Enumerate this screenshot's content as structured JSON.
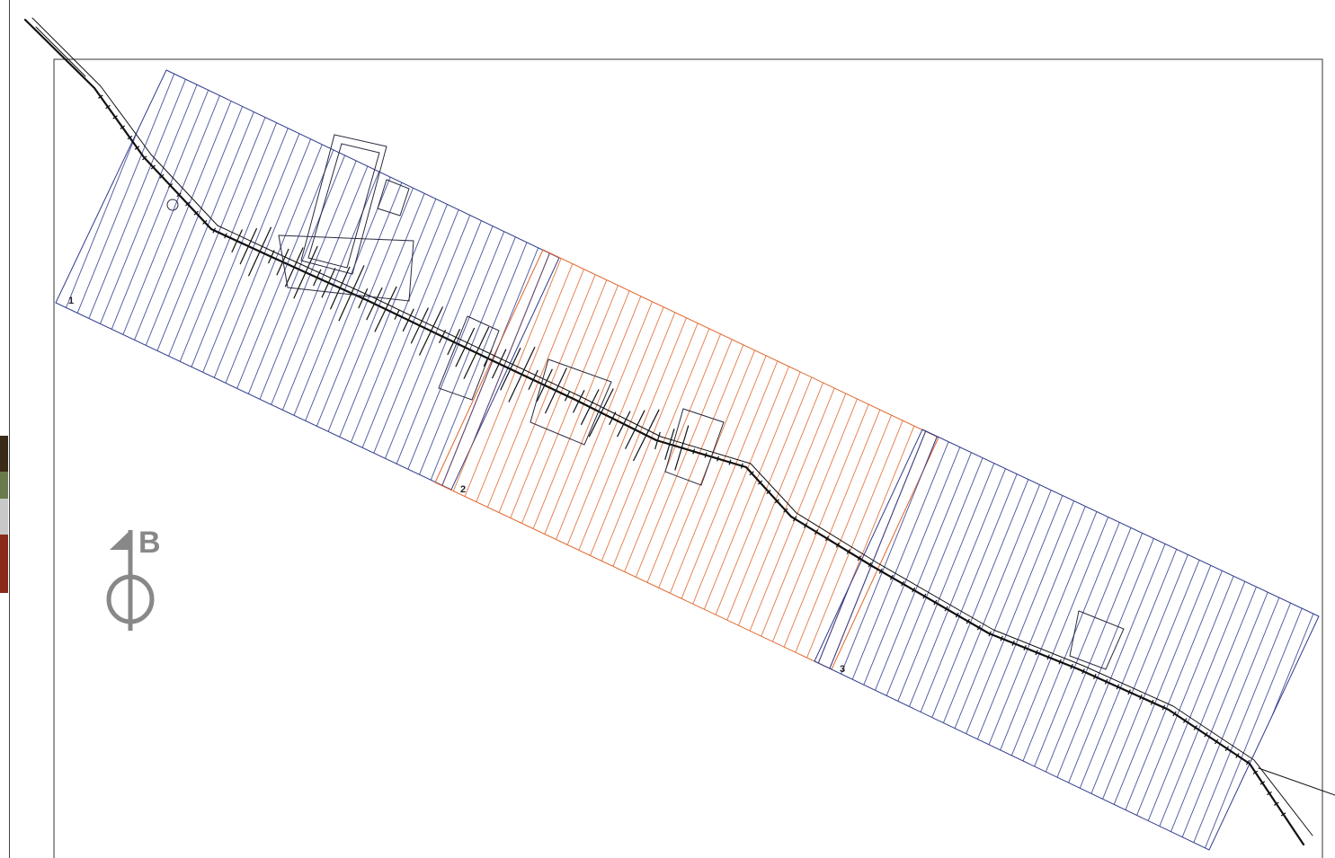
{
  "map": {
    "zones": [
      {
        "label": "1",
        "type": "blue-hatch"
      },
      {
        "label": "2",
        "type": "orange-hatch"
      },
      {
        "label": "3",
        "type": "blue-hatch"
      }
    ],
    "north_arrow": {
      "letter": "В",
      "icon": "north-arrow-icon"
    },
    "colors": {
      "blue_hatch": "#2e3a8c",
      "orange_hatch": "#e0652a",
      "road": "#111111",
      "frame": "#333333",
      "north_arrow": "#888888"
    }
  }
}
